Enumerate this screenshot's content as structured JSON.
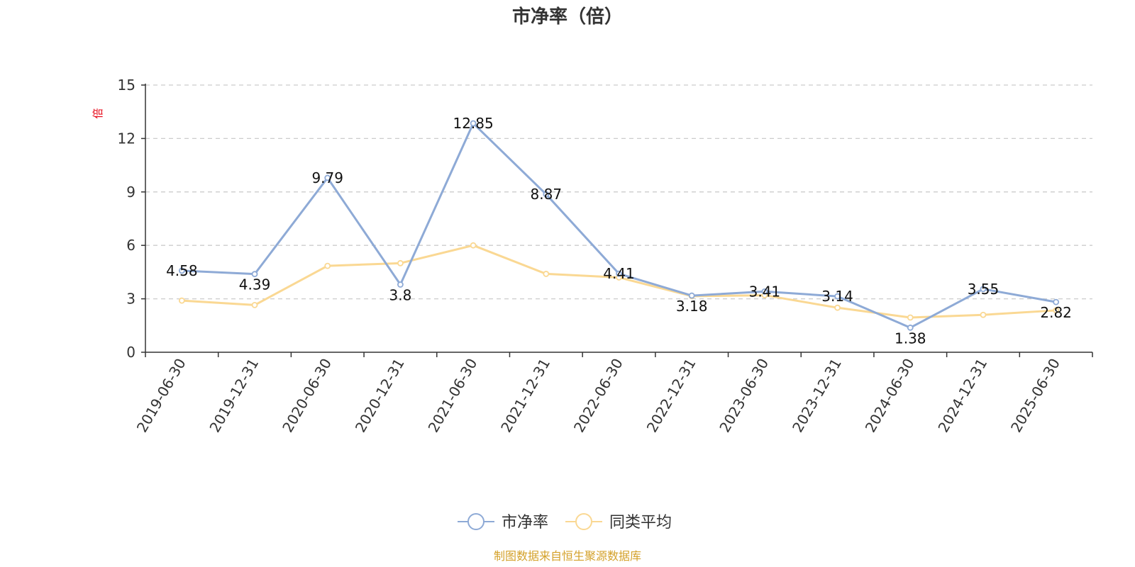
{
  "chart_data": {
    "type": "line",
    "title": "市净率（倍）",
    "ylabel": "倍",
    "x": [
      "2019-06-30",
      "2019-12-31",
      "2020-06-30",
      "2020-12-31",
      "2021-06-30",
      "2021-12-31",
      "2022-06-30",
      "2022-12-31",
      "2023-06-30",
      "2023-12-31",
      "2024-06-30",
      "2024-12-31",
      "2025-06-30"
    ],
    "ylim": [
      0,
      15
    ],
    "yticks": [
      0,
      3,
      6,
      9,
      12,
      15
    ],
    "grid": "horizontal dashed",
    "legend_position": "bottom-center",
    "series": [
      {
        "name": "市净率",
        "color": "#8eaad6",
        "values": [
          4.58,
          4.39,
          9.79,
          3.8,
          12.85,
          8.87,
          4.41,
          3.18,
          3.41,
          3.14,
          1.38,
          3.55,
          2.82
        ],
        "labels": [
          "4.58",
          "4.39",
          "9.79",
          "3.8",
          "12.85",
          "8.87",
          "4.41",
          "3.18",
          "3.41",
          "3.14",
          "1.38",
          "3.55",
          "2.82"
        ]
      },
      {
        "name": "同类平均",
        "color": "#fad893",
        "values": [
          2.9,
          2.65,
          4.85,
          5.0,
          6.0,
          4.4,
          4.2,
          3.15,
          3.2,
          2.5,
          1.95,
          2.1,
          2.35
        ]
      }
    ],
    "source_note": "制图数据来自恒生聚源数据库"
  }
}
